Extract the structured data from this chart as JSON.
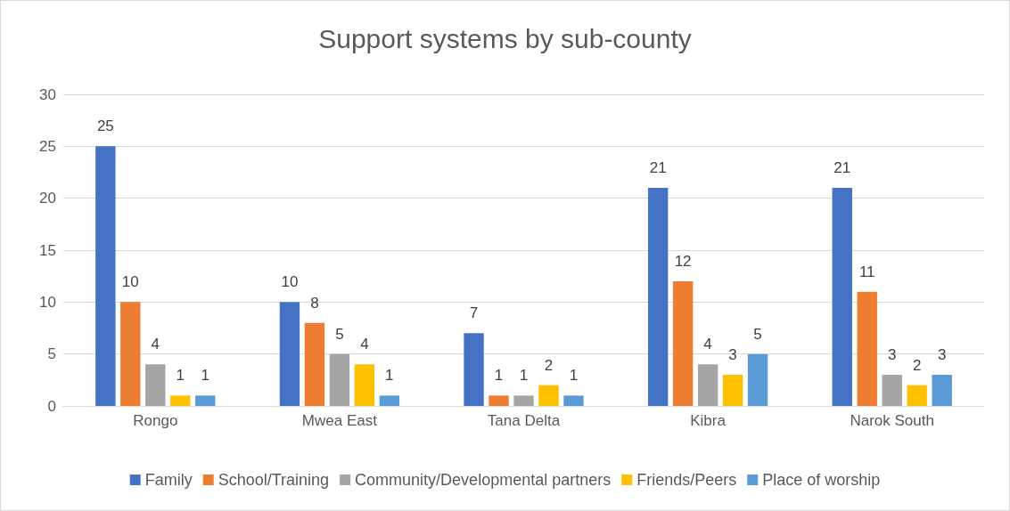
{
  "chart_data": {
    "type": "bar",
    "title": "Support systems by sub-county",
    "categories": [
      "Rongo",
      "Mwea East",
      "Tana Delta",
      "Kibra",
      "Narok South"
    ],
    "series": [
      {
        "name": "Family",
        "color": "#4472c4",
        "values": [
          25,
          10,
          7,
          21,
          21
        ]
      },
      {
        "name": "School/Training",
        "color": "#ed7d31",
        "values": [
          10,
          8,
          1,
          12,
          11
        ]
      },
      {
        "name": "Community/Developmental partners",
        "color": "#a5a5a5",
        "values": [
          4,
          5,
          1,
          4,
          3
        ]
      },
      {
        "name": "Friends/Peers",
        "color": "#ffc000",
        "values": [
          1,
          4,
          2,
          3,
          2
        ]
      },
      {
        "name": "Place of worship",
        "color": "#5b9bd5",
        "values": [
          1,
          1,
          1,
          5,
          3
        ]
      }
    ],
    "ylim": [
      0,
      30
    ],
    "yticks": [
      0,
      5,
      10,
      15,
      20,
      25,
      30
    ],
    "grid": "y",
    "legend": "bottom",
    "data_labels": true
  }
}
